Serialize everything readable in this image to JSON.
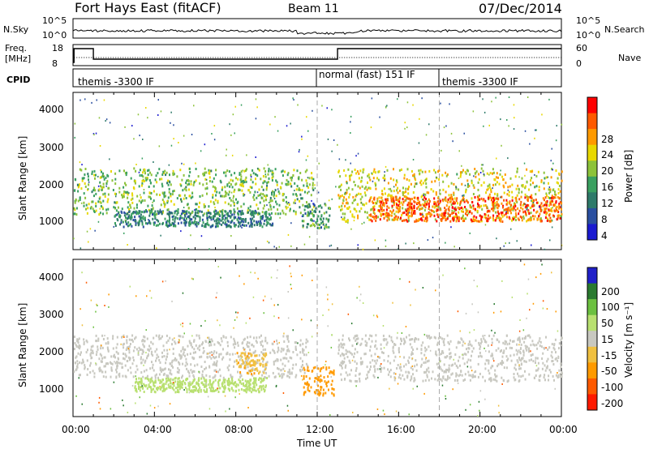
{
  "header": {
    "station": "Fort Hays East (fitACF)",
    "beam": "Beam 11",
    "date": "07/Dec/2014"
  },
  "top_panels": {
    "nsky_label": "N.Sky",
    "nsky_ticks": [
      "10^5",
      "10^0"
    ],
    "nsearch_label": "N.Search",
    "nsearch_ticks": [
      "10^5",
      "10^0"
    ],
    "freq_label_1": "Freq.",
    "freq_label_2": "[MHz]",
    "freq_ticks": [
      "18",
      "8"
    ],
    "nave_label": "Nave",
    "nave_ticks": [
      "60",
      "0"
    ],
    "cpid_label": "CPID",
    "cpid_segments": [
      {
        "label": "themis -3300 IF",
        "start_hr": 0
      },
      {
        "label": "normal (fast) 151 IF",
        "start_hr": 13
      },
      {
        "label": "themis -3300 IF",
        "start_hr": 18
      }
    ]
  },
  "power_panel": {
    "ylabel": "Slant Range [km]",
    "colorbar_label": "Power [dB]",
    "colorbar_ticks": [
      "28",
      "24",
      "20",
      "16",
      "12",
      "8",
      "4"
    ],
    "colorbar_colors": [
      "#ff0000",
      "#ff5a00",
      "#ff9a00",
      "#e8d800",
      "#8dc33a",
      "#3aa060",
      "#2e7a6a",
      "#2a4fa0",
      "#1a1ad0"
    ]
  },
  "velocity_panel": {
    "ylabel": "Slant Range [km]",
    "colorbar_label": "Velocity [m s⁻¹]",
    "colorbar_ticks": [
      "200",
      "100",
      "50",
      "15",
      "-15",
      "-50",
      "-100",
      "-200"
    ],
    "colorbar_colors": [
      "#2020c8",
      "#2a7a30",
      "#6cc040",
      "#b8e070",
      "#c8c8c0",
      "#f0c040",
      "#ff9a00",
      "#ff5a00",
      "#ff1a00"
    ]
  },
  "x_axis": {
    "label": "Time UT",
    "ticks": [
      "00:00",
      "04:00",
      "08:00",
      "12:00",
      "16:00",
      "20:00",
      "00:00"
    ]
  },
  "y_axis": {
    "ticks": [
      "4000",
      "3000",
      "2000",
      "1000"
    ]
  },
  "chart_data": [
    {
      "type": "heatmap",
      "title": "Fort Hays East (fitACF) Beam 11 07/Dec/2014",
      "xlabel": "Time UT",
      "ylabel": "Slant Range [km]",
      "xlim": [
        0,
        24
      ],
      "ylim": [
        180,
        4600
      ],
      "x_ticks": [
        "00:00",
        "04:00",
        "08:00",
        "12:00",
        "16:00",
        "20:00",
        "00:00"
      ],
      "y_ticks": [
        1000,
        2000,
        3000,
        4000
      ],
      "colorbar": {
        "label": "Power [dB]",
        "range": [
          0,
          30
        ],
        "ticks": [
          4,
          8,
          12,
          16,
          20,
          24,
          28
        ]
      },
      "scatter_bands": [
        {
          "t_start": 0.0,
          "t_end": 11.8,
          "range_low_km": 1200,
          "range_high_km": 2500,
          "power_db_typical": 14
        },
        {
          "t_start": 2.0,
          "t_end": 9.8,
          "range_low_km": 850,
          "range_high_km": 1300,
          "power_db_typical": 8
        },
        {
          "t_start": 11.2,
          "t_end": 12.6,
          "range_low_km": 800,
          "range_high_km": 1500,
          "power_db_typical": 10
        },
        {
          "t_start": 13.0,
          "t_end": 24.0,
          "range_low_km": 1000,
          "range_high_km": 2500,
          "power_db_typical": 18
        },
        {
          "t_start": 14.5,
          "t_end": 24.0,
          "range_low_km": 1000,
          "range_high_km": 1700,
          "power_db_typical": 26
        }
      ]
    },
    {
      "type": "heatmap",
      "xlabel": "Time UT",
      "ylabel": "Slant Range [km]",
      "xlim": [
        0,
        24
      ],
      "ylim": [
        180,
        4600
      ],
      "x_ticks": [
        "00:00",
        "04:00",
        "08:00",
        "12:00",
        "16:00",
        "20:00",
        "00:00"
      ],
      "y_ticks": [
        1000,
        2000,
        3000,
        4000
      ],
      "colorbar": {
        "label": "Velocity [m s⁻¹]",
        "range": [
          -250,
          250
        ],
        "ticks": [
          -200,
          -100,
          -50,
          -15,
          15,
          50,
          100,
          200
        ]
      },
      "scatter_bands": [
        {
          "t_start": 0.0,
          "t_end": 11.5,
          "range_low_km": 1300,
          "range_high_km": 2500,
          "velocity_typical": 0
        },
        {
          "t_start": 3.0,
          "t_end": 9.5,
          "range_low_km": 900,
          "range_high_km": 1300,
          "velocity_typical": 60
        },
        {
          "t_start": 8.0,
          "t_end": 9.5,
          "range_low_km": 1400,
          "range_high_km": 2000,
          "velocity_typical": -80
        },
        {
          "t_start": 11.3,
          "t_end": 12.8,
          "range_low_km": 800,
          "range_high_km": 1600,
          "velocity_typical": -120
        },
        {
          "t_start": 13.0,
          "t_end": 24.0,
          "range_low_km": 1200,
          "range_high_km": 2500,
          "velocity_typical": 0
        }
      ]
    }
  ]
}
